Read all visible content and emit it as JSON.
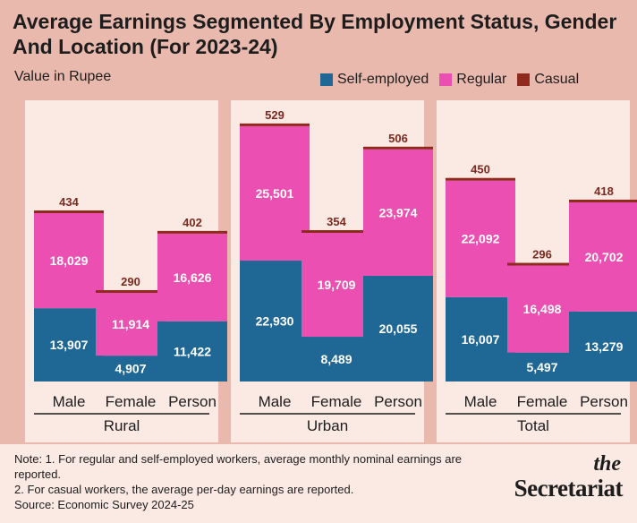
{
  "title": "Average Earnings Segmented By Employment Status, Gender And Location (For 2023-24)",
  "subtitle": "Value in Rupee",
  "legend": [
    {
      "label": "Self-employed",
      "color": "#1f6896"
    },
    {
      "label": "Regular",
      "color": "#ec4fb2"
    },
    {
      "label": "Casual",
      "color": "#8e2a1e"
    }
  ],
  "chart_data": {
    "type": "bar",
    "stacked": true,
    "y_scale_max": 53000,
    "groups": [
      {
        "name": "Rural",
        "categories": [
          "Male",
          "Female",
          "Person"
        ],
        "self_employed": [
          13907,
          4907,
          11422
        ],
        "regular": [
          18029,
          11914,
          16626
        ],
        "casual": [
          434,
          290,
          402
        ],
        "self_employed_labels": [
          "13,907",
          "4,907",
          "11,422"
        ],
        "regular_labels": [
          "18,029",
          "11,914",
          "16,626"
        ],
        "casual_labels": [
          "434",
          "290",
          "402"
        ]
      },
      {
        "name": "Urban",
        "categories": [
          "Male",
          "Female",
          "Person"
        ],
        "self_employed": [
          22930,
          8489,
          20055
        ],
        "regular": [
          25501,
          19709,
          23974
        ],
        "casual": [
          529,
          354,
          506
        ],
        "self_employed_labels": [
          "22,930",
          "8,489",
          "20,055"
        ],
        "regular_labels": [
          "25,501",
          "19,709",
          "23,974"
        ],
        "casual_labels": [
          "529",
          "354",
          "506"
        ]
      },
      {
        "name": "Total",
        "categories": [
          "Male",
          "Female",
          "Person"
        ],
        "self_employed": [
          16007,
          5497,
          13279
        ],
        "regular": [
          22092,
          16498,
          20702
        ],
        "casual": [
          450,
          296,
          418
        ],
        "self_employed_labels": [
          "16,007",
          "5,497",
          "13,279"
        ],
        "regular_labels": [
          "22,092",
          "16,498",
          "20,702"
        ],
        "casual_labels": [
          "450",
          "296",
          "418"
        ]
      }
    ]
  },
  "footer": {
    "note1": "Note: 1. For regular and self-employed workers, average monthly nominal earnings are reported.",
    "note2": "2. For casual workers, the average per-day earnings are reported.",
    "source": "Source: Economic Survey 2024-25",
    "logo_the": "the",
    "logo_main": "Secretariat"
  }
}
